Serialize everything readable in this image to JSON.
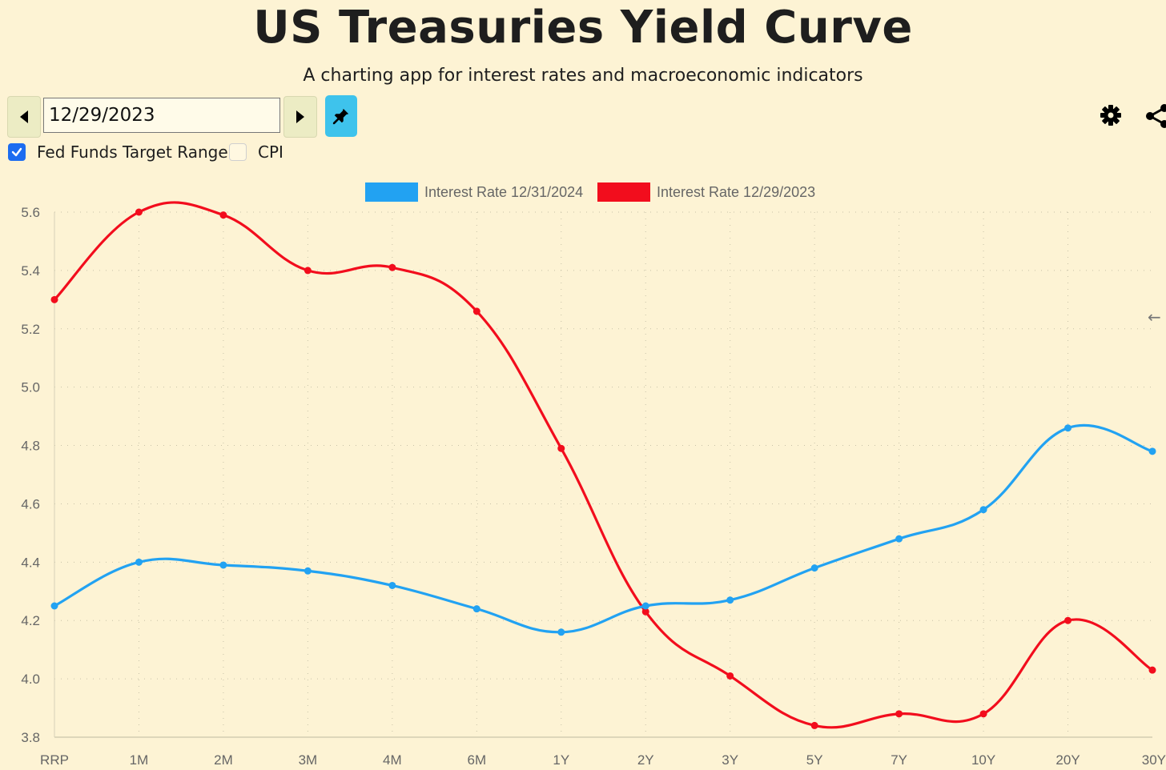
{
  "header": {
    "title": "US Treasuries Yield Curve",
    "subtitle": "A charting app for interest rates and macroeconomic indicators"
  },
  "controls": {
    "date_value": "12/29/2023",
    "checkboxes": [
      {
        "label": "Fed Funds Target Range",
        "checked": true
      },
      {
        "label": "CPI",
        "checked": false
      }
    ]
  },
  "colors": {
    "series_2024": "#22a2f2",
    "series_2023": "#f20d1d",
    "background": "#fdf3d4",
    "pin_button": "#3ec3ec",
    "checkbox": "#1c6cf0"
  },
  "icons": {
    "prev": "caret-left-icon",
    "next": "caret-right-icon",
    "pin": "pushpin-icon",
    "settings": "gear-icon",
    "share": "share-icon",
    "side": "arrow-left-icon"
  },
  "chart_data": {
    "type": "line",
    "categories": [
      "RRP",
      "1M",
      "2M",
      "3M",
      "4M",
      "6M",
      "1Y",
      "2Y",
      "3Y",
      "5Y",
      "7Y",
      "10Y",
      "20Y",
      "30Y"
    ],
    "series": [
      {
        "name": "Interest Rate 12/31/2024",
        "color": "#22a2f2",
        "values": [
          4.25,
          4.4,
          4.39,
          4.37,
          4.32,
          4.24,
          4.16,
          4.25,
          4.27,
          4.38,
          4.48,
          4.58,
          4.86,
          4.78
        ]
      },
      {
        "name": "Interest Rate 12/29/2023",
        "color": "#f20d1d",
        "values": [
          5.3,
          5.6,
          5.59,
          5.4,
          5.41,
          5.26,
          4.79,
          4.23,
          4.01,
          3.84,
          3.88,
          3.88,
          4.2,
          4.03
        ]
      }
    ],
    "ylim": [
      3.8,
      5.6
    ],
    "yticks": [
      "5.6",
      "5.4",
      "5.2",
      "5.0",
      "4.8",
      "4.6",
      "4.4",
      "4.2",
      "4.0",
      "3.8"
    ],
    "legend_position": "top-center",
    "grid": "dotted"
  }
}
